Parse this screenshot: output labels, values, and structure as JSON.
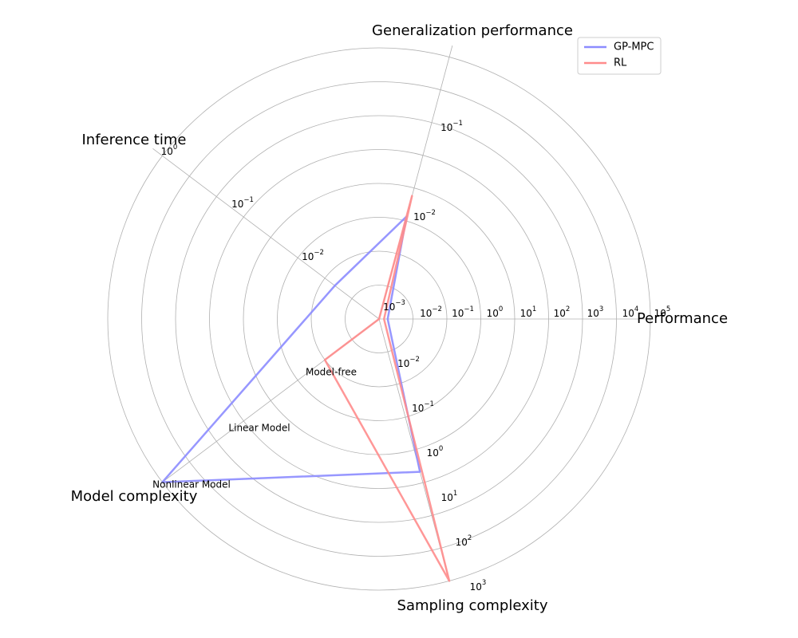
{
  "chart_data": {
    "type": "radar",
    "legend_placement": "top-right",
    "grid": true,
    "axes": [
      {
        "id": "performance",
        "label": "Performance",
        "ticks": [
          {
            "base": "10",
            "exp": "−2"
          },
          {
            "base": "10",
            "exp": "−1"
          },
          {
            "base": "10",
            "exp": "0"
          },
          {
            "base": "10",
            "exp": "1"
          },
          {
            "base": "10",
            "exp": "2"
          },
          {
            "base": "10",
            "exp": "3"
          },
          {
            "base": "10",
            "exp": "4"
          },
          {
            "base": "10",
            "exp": "5"
          }
        ]
      },
      {
        "id": "generalization",
        "label": "Generalization performance",
        "ticks": [
          {
            "base": "10",
            "exp": "−3"
          },
          {
            "base": "10",
            "exp": "−2"
          },
          {
            "base": "10",
            "exp": "−1"
          }
        ]
      },
      {
        "id": "inference_time",
        "label": "Inference time",
        "ticks": [
          {
            "base": "10",
            "exp": "−2"
          },
          {
            "base": "10",
            "exp": "−1"
          },
          {
            "base": "10",
            "exp": "0"
          }
        ]
      },
      {
        "id": "model_complexity",
        "label": "Model complexity",
        "ticks": [
          {
            "text": "Model-free"
          },
          {
            "text": "Linear Model"
          },
          {
            "text": "Nonlinear Model"
          }
        ]
      },
      {
        "id": "sampling_complexity",
        "label": "Sampling complexity",
        "ticks": [
          {
            "base": "10",
            "exp": "−2"
          },
          {
            "base": "10",
            "exp": "−1"
          },
          {
            "base": "10",
            "exp": "0"
          },
          {
            "base": "10",
            "exp": "1"
          },
          {
            "base": "10",
            "exp": "2"
          },
          {
            "base": "10",
            "exp": "3"
          }
        ]
      }
    ],
    "series": [
      {
        "name": "GP-MPC",
        "color": "#8c8cff",
        "values": {
          "performance": 0.018,
          "generalization": 0.0045,
          "inference_time": 0.0045,
          "model_complexity": "Nonlinear Model",
          "sampling_complexity": 10
        }
      },
      {
        "name": "RL",
        "color": "#ff8c8c",
        "values": {
          "performance": 0.014,
          "generalization": 0.008,
          "inference_time": 0.0001,
          "model_complexity": "Model-free",
          "sampling_complexity": 1000
        }
      }
    ]
  }
}
